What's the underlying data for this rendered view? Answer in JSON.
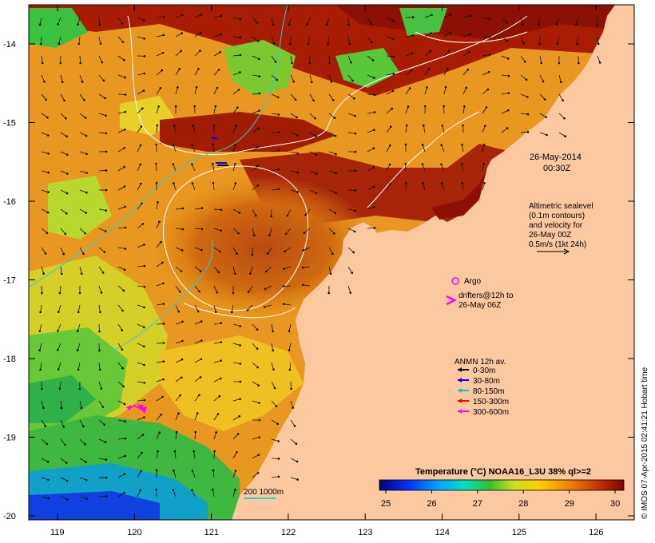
{
  "map": {
    "date_line1": "26-May-2014",
    "date_line2": "00:30Z",
    "altimetry_lines": [
      "Altimetric sealevel",
      "(0.1m contours)",
      "and velocity for",
      "26-May 00Z",
      "0.5m/s (1kt 24h)"
    ],
    "argo_label": "Argo",
    "drifters_lines": [
      "drifters@12h to",
      "26-May 06Z"
    ],
    "anmn_title": "ANMN 12h av.",
    "anmn_items": [
      {
        "label": "0-30m",
        "color": "#000000"
      },
      {
        "label": "30-80m",
        "color": "#0000ff"
      },
      {
        "label": "80-150m",
        "color": "#00cccc"
      },
      {
        "label": "150-300m",
        "color": "#ff0000"
      },
      {
        "label": "300-600m",
        "color": "#ff00ff"
      }
    ],
    "scale_label": "200  1000m",
    "colorbar": {
      "title": "Temperature (°C) NOAA16_L3U 38% ql>=2",
      "ticks": [
        "25",
        "26",
        "27",
        "28",
        "29",
        "30"
      ]
    },
    "axes": {
      "lat_labels": [
        "-14",
        "-15",
        "-16",
        "-17",
        "-18",
        "-19",
        "-20"
      ],
      "lon_labels": [
        "119",
        "120",
        "121",
        "122",
        "123",
        "124",
        "125",
        "126"
      ]
    },
    "credit": "© IMOS 07-Apr-2015 02:41:21 Hobart time",
    "colors": {
      "land": "#fbc8a0",
      "argo": "#ff00ff",
      "drifter": "#ff00ff",
      "contour": "#ffffff",
      "isobath": "#33cccc"
    }
  }
}
